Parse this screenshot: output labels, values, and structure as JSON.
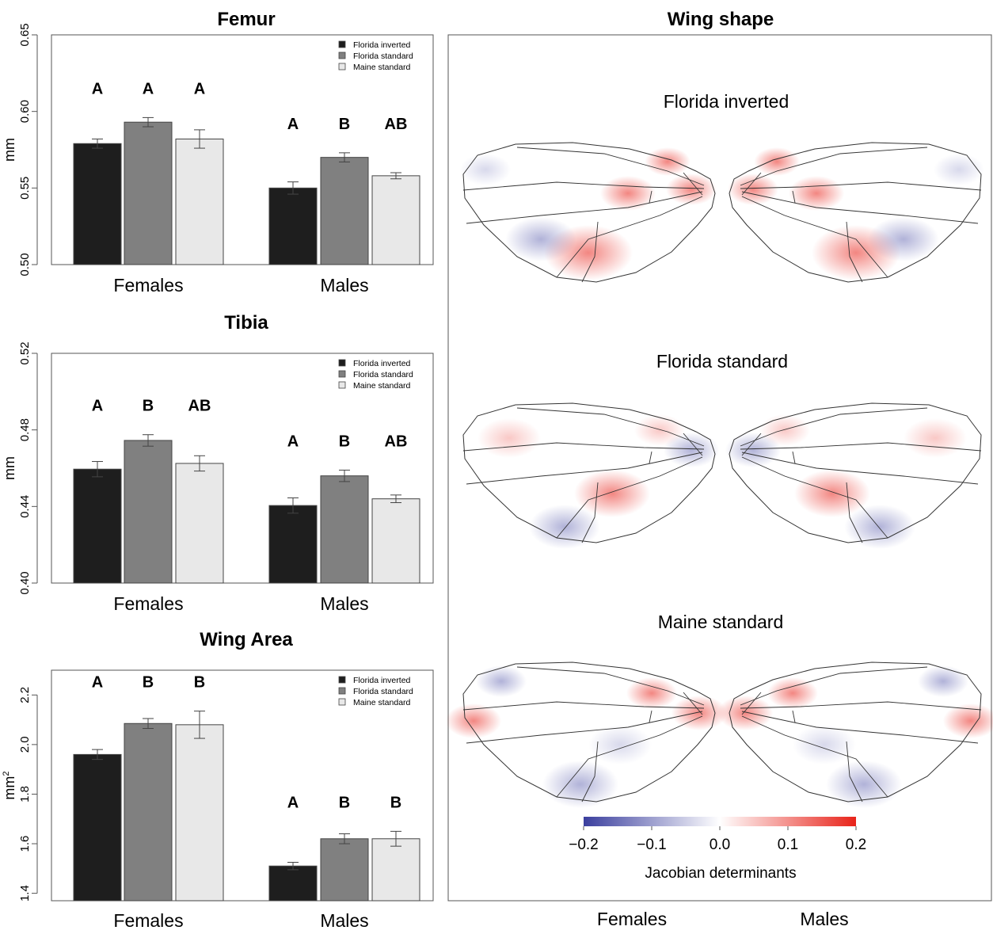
{
  "chart_data": [
    {
      "type": "bar",
      "title": "Femur",
      "ylabel": "mm",
      "ylabel_sup": "",
      "ylim": [
        0.5,
        0.65
      ],
      "yticks": [
        0.5,
        0.55,
        0.6,
        0.65
      ],
      "ytick_labels": [
        "0.50",
        "0.55",
        "0.60",
        "0.65"
      ],
      "categories": [
        "Females",
        "Males"
      ],
      "series": [
        {
          "name": "Florida inverted",
          "color": "#1e1e1e",
          "values": [
            0.579,
            0.55
          ],
          "errors": [
            0.003,
            0.004
          ]
        },
        {
          "name": "Florida standard",
          "color": "#808080",
          "values": [
            0.593,
            0.57
          ],
          "errors": [
            0.003,
            0.003
          ]
        },
        {
          "name": "Maine standard",
          "color": "#e8e8e8",
          "values": [
            0.582,
            0.558
          ],
          "errors": [
            0.006,
            0.002
          ]
        }
      ],
      "letters": [
        [
          "A",
          "A",
          "A"
        ],
        [
          "A",
          "B",
          "AB"
        ]
      ],
      "legend": "top-right"
    },
    {
      "type": "bar",
      "title": "Tibia",
      "ylabel": "mm",
      "ylabel_sup": "",
      "ylim": [
        0.4,
        0.52
      ],
      "yticks": [
        0.4,
        0.44,
        0.48,
        0.52
      ],
      "ytick_labels": [
        "0.40",
        "0.44",
        "0.48",
        "0.52"
      ],
      "categories": [
        "Females",
        "Males"
      ],
      "series": [
        {
          "name": "Florida inverted",
          "color": "#1e1e1e",
          "values": [
            0.4595,
            0.4405
          ],
          "errors": [
            0.004,
            0.004
          ]
        },
        {
          "name": "Florida standard",
          "color": "#808080",
          "values": [
            0.4745,
            0.456
          ],
          "errors": [
            0.003,
            0.003
          ]
        },
        {
          "name": "Maine standard",
          "color": "#e8e8e8",
          "values": [
            0.4625,
            0.444
          ],
          "errors": [
            0.004,
            0.002
          ]
        }
      ],
      "letters": [
        [
          "A",
          "B",
          "AB"
        ],
        [
          "A",
          "B",
          "AB"
        ]
      ],
      "legend": "top-right"
    },
    {
      "type": "bar",
      "title": "Wing Area",
      "ylabel": "mm",
      "ylabel_sup": "2",
      "ylim": [
        1.37,
        2.3
      ],
      "yticks": [
        1.4,
        1.6,
        1.8,
        2.0,
        2.2
      ],
      "ytick_labels": [
        "1.4",
        "1.6",
        "1.8",
        "2.0",
        "2.2"
      ],
      "categories": [
        "Females",
        "Males"
      ],
      "series": [
        {
          "name": "Florida inverted",
          "color": "#1e1e1e",
          "values": [
            1.96,
            1.51
          ],
          "errors": [
            0.02,
            0.015
          ]
        },
        {
          "name": "Florida standard",
          "color": "#808080",
          "values": [
            2.085,
            1.62
          ],
          "errors": [
            0.02,
            0.02
          ]
        },
        {
          "name": "Maine standard",
          "color": "#e8e8e8",
          "values": [
            2.08,
            1.62
          ],
          "errors": [
            0.055,
            0.03
          ]
        }
      ],
      "letters": [
        [
          "A",
          "B",
          "B"
        ],
        [
          "A",
          "B",
          "B"
        ]
      ],
      "legend": "top-right"
    }
  ],
  "wing_panel": {
    "title": "Wing shape",
    "rows": [
      "Florida inverted",
      "Florida standard",
      "Maine standard"
    ],
    "columns": [
      "Females",
      "Males"
    ],
    "colorbar": {
      "label": "Jacobian determinants",
      "ticks": [
        -0.2,
        -0.1,
        0.0,
        0.1,
        0.2
      ],
      "tick_labels": [
        "−0.2",
        "−0.1",
        "0.0",
        "0.1",
        "0.2"
      ],
      "colors": [
        "#3b3f9e",
        "#ffffff",
        "#e8231a"
      ]
    }
  }
}
